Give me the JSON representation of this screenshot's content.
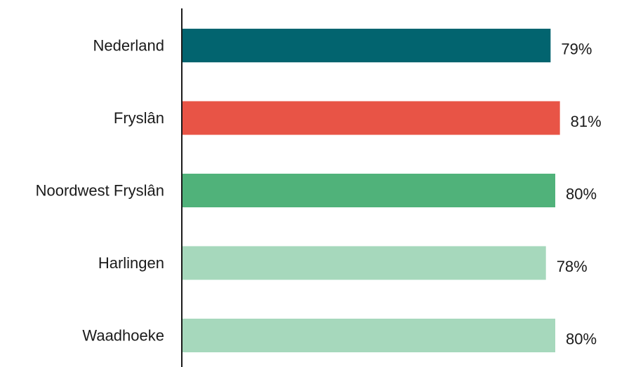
{
  "chart_data": {
    "type": "bar",
    "orientation": "horizontal",
    "categories": [
      "Nederland",
      "Fryslân",
      "Noordwest Fryslân",
      "Harlingen",
      "Waadhoeke"
    ],
    "values": [
      79,
      81,
      80,
      78,
      80
    ],
    "value_labels": [
      "79%",
      "81%",
      "80%",
      "78%",
      "80%"
    ],
    "colors": [
      "#02646F",
      "#E85446",
      "#50B27A",
      "#A6D8BC",
      "#A6D8BC"
    ],
    "unit": "%",
    "xlim": [
      0,
      100
    ],
    "grid": false,
    "legend": "none",
    "title": "",
    "xlabel": "",
    "ylabel": ""
  }
}
